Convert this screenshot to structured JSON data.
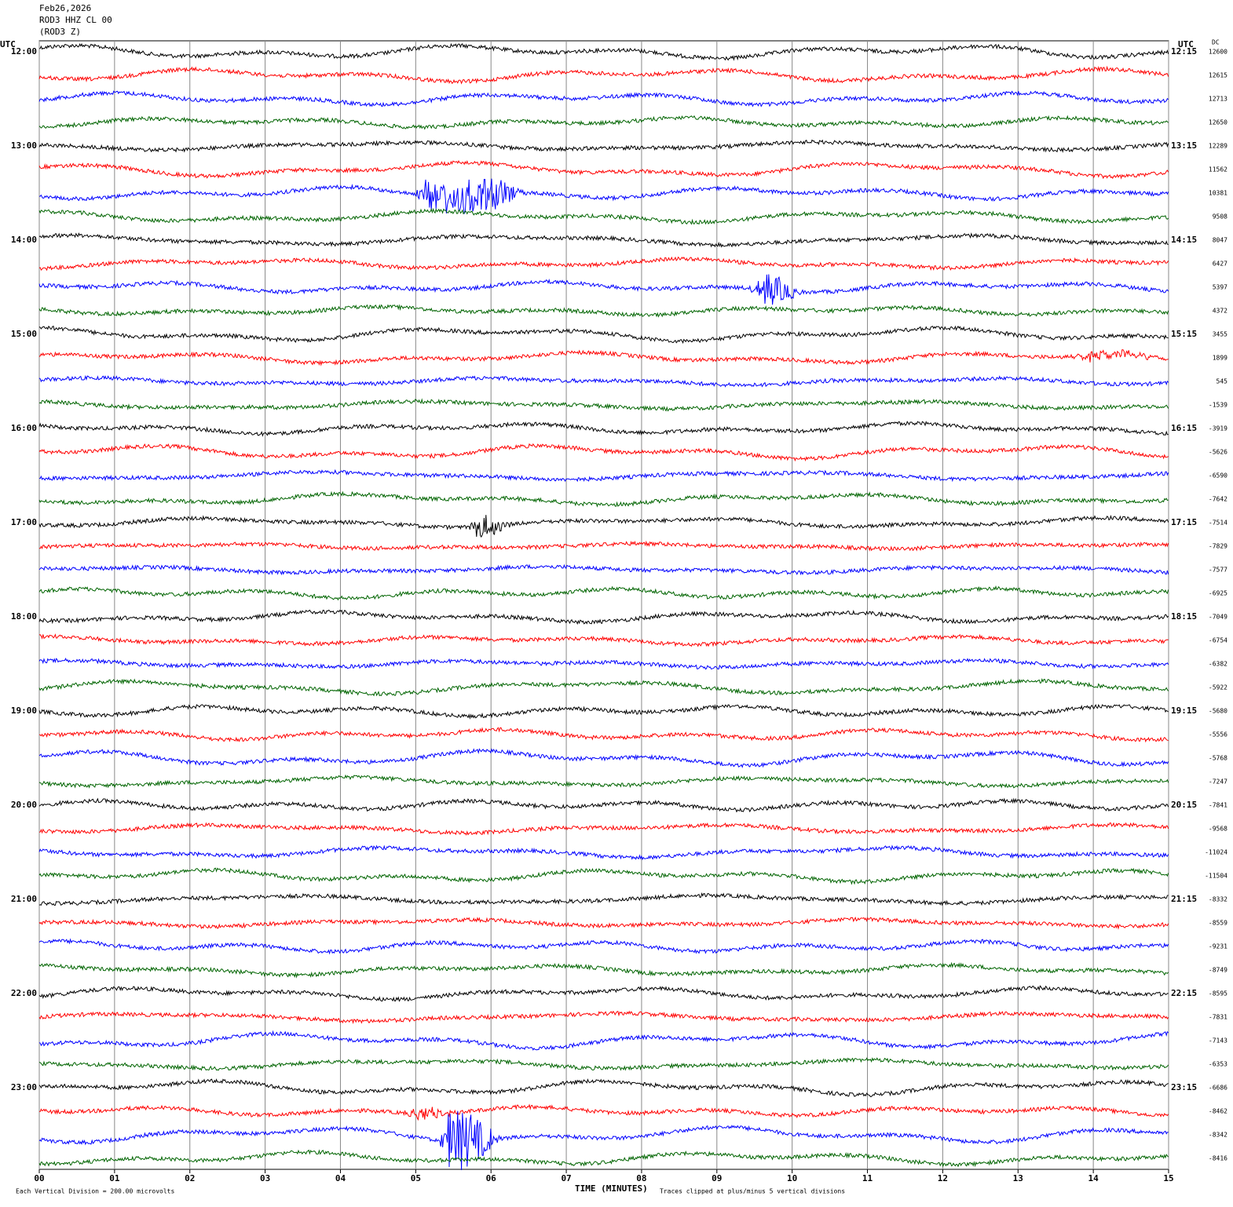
{
  "header": {
    "lines": [
      "Feb26,2026",
      "ROD3 HHZ CL 00",
      "(ROD3 Z)"
    ]
  },
  "left_axis": {
    "title": "UTC",
    "labels": [
      "12:00",
      "13:00",
      "14:00",
      "15:00",
      "16:00",
      "17:00",
      "18:00",
      "19:00",
      "20:00",
      "21:00",
      "22:00",
      "23:00"
    ]
  },
  "right_axis": {
    "title": "UTC",
    "labels": [
      "12:15",
      "13:15",
      "14:15",
      "15:15",
      "16:15",
      "17:15",
      "18:15",
      "19:15",
      "20:15",
      "21:15",
      "22:15",
      "23:15"
    ]
  },
  "dc": {
    "title": "DC",
    "values": [
      12600,
      12615,
      12713,
      12650,
      12289,
      11562,
      10381,
      9508,
      8047,
      6427,
      5397,
      4372,
      3455,
      1899,
      545,
      -1539,
      -3919,
      -5626,
      -6590,
      -7642,
      -7514,
      -7829,
      -7577,
      -6925,
      -7049,
      -6754,
      -6382,
      -5922,
      -5680,
      -5556,
      -5768,
      -7247,
      -7841,
      -9568,
      -11024,
      -11504,
      -8332,
      -8559,
      -9231,
      -8749,
      -8595,
      -7831,
      -7143,
      -6353,
      -6686,
      -8462,
      -8342,
      -8416
    ]
  },
  "x_axis": {
    "ticks": [
      "00",
      "01",
      "02",
      "03",
      "04",
      "05",
      "06",
      "07",
      "08",
      "09",
      "10",
      "11",
      "12",
      "13",
      "14",
      "15"
    ],
    "label": "TIME (MINUTES)"
  },
  "footer": {
    "scale": "Each Vertical Division =  200.00 microvolts",
    "clip": "Traces clipped at plus/minus 5 vertical divisions"
  }
}
